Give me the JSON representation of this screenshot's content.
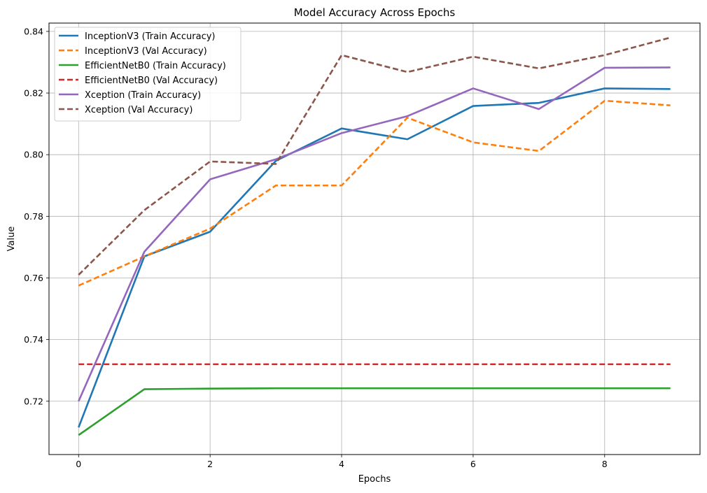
{
  "chart_data": {
    "type": "line",
    "title": "Model Accuracy Across Epochs",
    "xlabel": "Epochs",
    "ylabel": "Value",
    "xlim": [
      -0.45,
      9.45
    ],
    "ylim": [
      0.7027,
      0.8427
    ],
    "x_ticks": [
      0,
      2,
      4,
      6,
      8
    ],
    "y_ticks": [
      0.72,
      0.74,
      0.76,
      0.78,
      0.8,
      0.82,
      0.84
    ],
    "grid": true,
    "legend_position": "top-left",
    "x": [
      0,
      1,
      2,
      3,
      4,
      5,
      6,
      7,
      8,
      9
    ],
    "series": [
      {
        "name": "InceptionV3 (Train Accuracy)",
        "color": "#1f77b4",
        "dashed": false,
        "values": [
          0.7115,
          0.767,
          0.775,
          0.798,
          0.8085,
          0.805,
          0.8158,
          0.8168,
          0.8215,
          0.8213
        ]
      },
      {
        "name": "InceptionV3 (Val Accuracy)",
        "color": "#ff7f0e",
        "dashed": true,
        "values": [
          0.7575,
          0.767,
          0.776,
          0.79,
          0.79,
          0.812,
          0.804,
          0.8012,
          0.8175,
          0.816
        ]
      },
      {
        "name": "EfficientNetB0 (Train Accuracy)",
        "color": "#2ca02c",
        "dashed": false,
        "values": [
          0.709,
          0.7239,
          0.7241,
          0.7242,
          0.7242,
          0.7242,
          0.7242,
          0.7242,
          0.7242,
          0.7242
        ]
      },
      {
        "name": "EfficientNetB0 (Val Accuracy)",
        "color": "#d62728",
        "dashed": true,
        "values": [
          0.732,
          0.732,
          0.732,
          0.732,
          0.732,
          0.732,
          0.732,
          0.732,
          0.732,
          0.732
        ]
      },
      {
        "name": "Xception (Train Accuracy)",
        "color": "#9467bd",
        "dashed": false,
        "values": [
          0.72,
          0.7685,
          0.792,
          0.7985,
          0.807,
          0.8125,
          0.8215,
          0.8148,
          0.8282,
          0.8283
        ]
      },
      {
        "name": "Xception (Val Accuracy)",
        "color": "#8c564b",
        "dashed": true,
        "values": [
          0.761,
          0.782,
          0.7978,
          0.797,
          0.8323,
          0.8268,
          0.8318,
          0.828,
          0.8323,
          0.838
        ]
      }
    ]
  }
}
